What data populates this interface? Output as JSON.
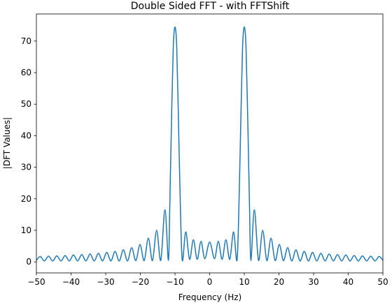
{
  "chart_data": {
    "type": "line",
    "title": "Double Sided FFT - with FFTShift",
    "xlabel": "Frequency (Hz)",
    "ylabel": "|DFT Values|",
    "xlim": [
      -50,
      50
    ],
    "ylim": [
      -3.5,
      78.6
    ],
    "xticks": [
      {
        "value": -50,
        "label": "−50"
      },
      {
        "value": -40,
        "label": "−40"
      },
      {
        "value": -30,
        "label": "−30"
      },
      {
        "value": -20,
        "label": "−20"
      },
      {
        "value": -10,
        "label": "−10"
      },
      0,
      10,
      20,
      30,
      40,
      50
    ],
    "yticks": [
      0,
      10,
      20,
      30,
      40,
      50,
      60,
      70
    ],
    "grid": false,
    "series": [
      {
        "color": "#1f77b4",
        "x": [
          -50,
          -48.9,
          -47.7,
          -46.5,
          -45.3,
          -44.1,
          -42.9,
          -41.7,
          -40.5,
          -39.3,
          -38.1,
          -36.9,
          -35.7,
          -34.5,
          -33.3,
          -32.1,
          -30.9,
          -29.7,
          -28.5,
          -27.3,
          -26.1,
          -24.9,
          -23.7,
          -22.5,
          -21.3,
          -20.1,
          -18.9,
          -17.7,
          -16.5,
          -15.3,
          -14.1,
          -12.9,
          -11.9,
          -11.5,
          -11,
          -10.5,
          -10,
          -9.5,
          -9,
          -8.5,
          -7.9,
          -6.9,
          -5.8,
          -4.7,
          -3.6,
          -2.5,
          -1.4,
          0,
          1.4,
          2.5,
          3.6,
          4.7,
          5.8,
          6.9,
          7.9,
          8.5,
          9,
          9.5,
          10,
          10.5,
          11,
          11.5,
          11.9,
          12.9,
          14.1,
          15.3,
          16.5,
          17.7,
          18.9,
          20.1,
          21.3,
          22.5,
          23.7,
          24.9,
          26.1,
          27.3,
          28.5,
          29.7,
          30.9,
          32.1,
          33.3,
          34.5,
          35.7,
          36.9,
          38.1,
          39.3,
          40.5,
          41.7,
          42.9,
          44.1,
          45.3,
          46.5,
          47.7,
          48.9,
          50
        ],
        "values": [
          0.5,
          1.7,
          0.3,
          1.8,
          0.3,
          1.9,
          0.3,
          2.0,
          0.3,
          2.2,
          0.3,
          2.3,
          0.3,
          2.5,
          0.3,
          2.7,
          0.3,
          3.0,
          0.3,
          3.3,
          0.3,
          3.8,
          0.3,
          4.5,
          0.4,
          5.5,
          0.4,
          7.5,
          0.4,
          10,
          0.5,
          16.5,
          0.5,
          18,
          45,
          68,
          74.5,
          68,
          45,
          20,
          0.5,
          9.5,
          0.8,
          7.0,
          0.8,
          6.5,
          1.0,
          6.3,
          1.0,
          6.5,
          0.8,
          7.0,
          0.8,
          9.5,
          0.5,
          20,
          45,
          68,
          74.5,
          68,
          45,
          18,
          0.5,
          16.5,
          0.5,
          10,
          0.4,
          7.5,
          0.4,
          5.5,
          0.4,
          4.5,
          0.3,
          3.8,
          0.3,
          3.3,
          0.3,
          3.0,
          0.3,
          2.7,
          0.3,
          2.5,
          0.3,
          2.3,
          0.3,
          2.2,
          0.3,
          2.0,
          0.3,
          1.9,
          0.3,
          1.8,
          0.3,
          1.7,
          0.5
        ]
      }
    ]
  }
}
